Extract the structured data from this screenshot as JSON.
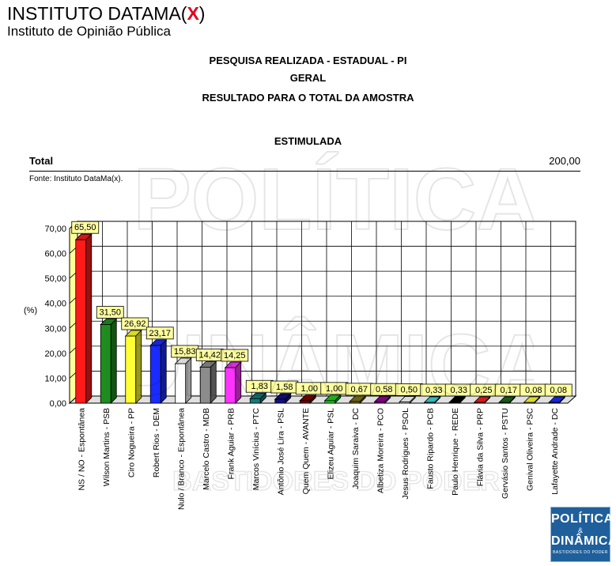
{
  "brand": {
    "name_prefix": "INSTITUTO DATAMA(",
    "name_x": "X",
    "name_suffix": ")",
    "subtitle": "Instituto de Opinião Pública"
  },
  "header": {
    "line1": "PESQUISA REALIZADA - ESTADUAL - PI",
    "line2": "GERAL",
    "line3": "RESULTADO PARA O TOTAL DA AMOSTRA",
    "section": "ESTIMULADA"
  },
  "total": {
    "label": "Total",
    "value": "200,00"
  },
  "source": "Fonte: Instituto DataMa(x).",
  "watermark": {
    "top": "POLÍTICA",
    "bottom": "DINÂMICA",
    "tagline": "BASTIDORES DO PODER"
  },
  "logo": {
    "line1": "POLÍTICA",
    "line2": "&",
    "line3": "DINÂMICA",
    "line4": "BASTIDORES DO PODER"
  },
  "chart_data": {
    "type": "bar",
    "ylabel": "(%)",
    "ylim": [
      0,
      70
    ],
    "yticks": [
      "0,00",
      "10,00",
      "20,00",
      "30,00",
      "40,00",
      "50,00",
      "60,00",
      "70,00"
    ],
    "grid": true,
    "categories": [
      "NS / NO - Espontânea",
      "Wilson Martins - PSB",
      "Ciro Nogueira - PP",
      "Robert Rios - DEM",
      "Nulo / Branco - Espontânea",
      "Marcelo Castro - MDB",
      "Frank Aguiar - PRB",
      "Marcos Vinícius - PTC",
      "Antônio José Lira - PSL",
      "Quem Quem - AVANTE",
      "Elizeu Aguiar - PSL",
      "Joaquim Saraiva - DC",
      "Albetiza Moreira - PCO",
      "Jesus Rodrigues - PSOL",
      "Fausto Ripardo - PCB",
      "Paulo Henrique - REDE",
      "Flávia da Silva - PRP",
      "Gervásio Santos - PSTU",
      "Genival Oliveira - PSC",
      "Lafayette Andrade - DC"
    ],
    "values": [
      65.5,
      31.5,
      26.92,
      23.17,
      15.83,
      14.42,
      14.25,
      1.83,
      1.58,
      1.0,
      1.0,
      0.67,
      0.58,
      0.5,
      0.33,
      0.33,
      0.25,
      0.17,
      0.08,
      0.08
    ],
    "value_labels": [
      "65,50",
      "31,50",
      "26,92",
      "23,17",
      "15,83",
      "14,42",
      "14,25",
      "1,83",
      "1,58",
      "1,00",
      "1,00",
      "0,67",
      "0,58",
      "0,50",
      "0,33",
      "0,33",
      "0,25",
      "0,17",
      "0,08",
      "0,08"
    ],
    "colors": [
      "#ff1a1a",
      "#1e8c1e",
      "#ffff33",
      "#1a2bff",
      "#ffffff",
      "#8c8c8c",
      "#ff33ff",
      "#147a7a",
      "#101080",
      "#800000",
      "#22cc22",
      "#807020",
      "#990099",
      "#ffffff",
      "#33dddd",
      "#000000",
      "#ff1a1a",
      "#1a6a1a",
      "#ffff33",
      "#1a2bff"
    ]
  }
}
